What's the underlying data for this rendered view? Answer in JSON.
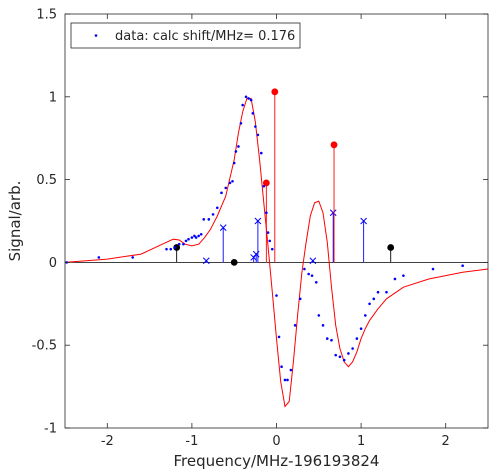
{
  "chart_data": {
    "type": "scatter",
    "xlabel": "Frequency/MHz-196193824",
    "ylabel": "Signal/arb.",
    "xlim": [
      -2.5,
      2.5
    ],
    "ylim": [
      -1,
      1.5
    ],
    "xticks": [
      -2,
      -1,
      0,
      1,
      2
    ],
    "yticks": [
      -1,
      -0.5,
      0,
      0.5,
      1,
      1.5
    ],
    "xtick_labels": [
      "-2",
      "-1",
      "0",
      "1",
      "2"
    ],
    "ytick_labels": [
      "-1",
      "-0.5",
      "0",
      "0.5",
      "1",
      "1.5"
    ],
    "grid": false,
    "legend": {
      "placement": "top-left",
      "text": "data: calc shift/MHz= 0.176"
    },
    "zero_line": true,
    "colors": {
      "data": "#0000ff",
      "fit": "#ff0000",
      "blue_sticks": "#0000ff",
      "red_sticks": "#ff0000",
      "black_sticks": "#000000",
      "axis": "#262626"
    },
    "series": [
      {
        "name": "data: calc shift/MHz= 0.176",
        "kind": "dots",
        "color": "#0000ff",
        "x": [
          -2.48,
          -2.1,
          -1.7,
          -1.3,
          -1.25,
          -1.2,
          -1.15,
          -1.1,
          -1.07,
          -1.04,
          -1.0,
          -0.97,
          -0.95,
          -0.92,
          -0.89,
          -0.86,
          -0.8,
          -0.75,
          -0.7,
          -0.65,
          -0.6,
          -0.55,
          -0.52,
          -0.5,
          -0.48,
          -0.45,
          -0.42,
          -0.4,
          -0.36,
          -0.33,
          -0.3,
          -0.28,
          -0.25,
          -0.22,
          -0.18,
          -0.15,
          -0.12,
          -0.1,
          -0.08,
          -0.05,
          0.0,
          0.03,
          0.06,
          0.1,
          0.13,
          0.17,
          0.22,
          0.28,
          0.33,
          0.38,
          0.42,
          0.47,
          0.5,
          0.55,
          0.6,
          0.65,
          0.7,
          0.75,
          0.8,
          0.85,
          0.9,
          0.95,
          1.0,
          1.05,
          1.1,
          1.15,
          1.2,
          1.3,
          1.4,
          1.5,
          1.85,
          2.2
        ],
        "y": [
          0.0,
          0.03,
          0.03,
          0.08,
          0.08,
          0.09,
          0.11,
          0.11,
          0.13,
          0.14,
          0.15,
          0.16,
          0.15,
          0.16,
          0.17,
          0.26,
          0.26,
          0.29,
          0.33,
          0.42,
          0.45,
          0.48,
          0.49,
          0.6,
          0.67,
          0.7,
          0.84,
          0.95,
          1.0,
          0.99,
          0.98,
          0.9,
          0.82,
          0.77,
          0.66,
          0.46,
          0.3,
          0.18,
          0.13,
          0.08,
          -0.2,
          -0.45,
          -0.63,
          -0.71,
          -0.71,
          -0.65,
          -0.38,
          -0.22,
          -0.04,
          -0.07,
          -0.08,
          -0.12,
          -0.32,
          -0.38,
          -0.46,
          -0.47,
          -0.56,
          -0.57,
          -0.59,
          -0.55,
          -0.52,
          -0.46,
          -0.4,
          -0.32,
          -0.25,
          -0.22,
          -0.18,
          -0.18,
          -0.1,
          -0.08,
          -0.04,
          -0.02
        ]
      },
      {
        "name": "",
        "kind": "line",
        "color": "#ff0000",
        "x": [
          -2.5,
          -2.0,
          -1.6,
          -1.35,
          -1.22,
          -1.15,
          -1.08,
          -1.0,
          -0.92,
          -0.85,
          -0.78,
          -0.7,
          -0.6,
          -0.5,
          -0.45,
          -0.4,
          -0.35,
          -0.3,
          -0.25,
          -0.2,
          -0.15,
          -0.1,
          -0.05,
          0.0,
          0.05,
          0.1,
          0.15,
          0.2,
          0.25,
          0.3,
          0.35,
          0.4,
          0.45,
          0.5,
          0.55,
          0.6,
          0.65,
          0.7,
          0.75,
          0.8,
          0.85,
          0.9,
          0.95,
          1.0,
          1.05,
          1.1,
          1.2,
          1.3,
          1.5,
          1.8,
          2.2,
          2.5
        ],
        "y": [
          0.0,
          0.02,
          0.05,
          0.11,
          0.14,
          0.135,
          0.11,
          0.1,
          0.11,
          0.15,
          0.2,
          0.28,
          0.4,
          0.62,
          0.78,
          0.91,
          0.99,
          0.99,
          0.85,
          0.62,
          0.36,
          0.1,
          -0.18,
          -0.46,
          -0.72,
          -0.87,
          -0.84,
          -0.6,
          -0.32,
          -0.06,
          0.12,
          0.28,
          0.36,
          0.37,
          0.3,
          0.12,
          -0.15,
          -0.38,
          -0.52,
          -0.6,
          -0.63,
          -0.6,
          -0.54,
          -0.46,
          -0.4,
          -0.35,
          -0.28,
          -0.22,
          -0.15,
          -0.1,
          -0.06,
          -0.04
        ]
      }
    ],
    "sticks": [
      {
        "marker": "x",
        "color": "#0000ff",
        "points": [
          [
            -0.83,
            0.01
          ],
          [
            -0.63,
            0.21
          ],
          [
            -0.27,
            0.03
          ],
          [
            -0.24,
            0.05
          ],
          [
            -0.22,
            0.25
          ],
          [
            0.43,
            0.01
          ],
          [
            0.67,
            0.3
          ],
          [
            1.03,
            0.25
          ]
        ]
      },
      {
        "marker": "dot",
        "color": "#ff0000",
        "points": [
          [
            -0.12,
            0.48
          ],
          [
            -0.02,
            1.03
          ],
          [
            0.68,
            0.71
          ]
        ]
      },
      {
        "marker": "dot",
        "color": "#000000",
        "points": [
          [
            -1.18,
            0.09
          ],
          [
            -0.5,
            0.0
          ],
          [
            1.35,
            0.09
          ]
        ]
      }
    ]
  }
}
